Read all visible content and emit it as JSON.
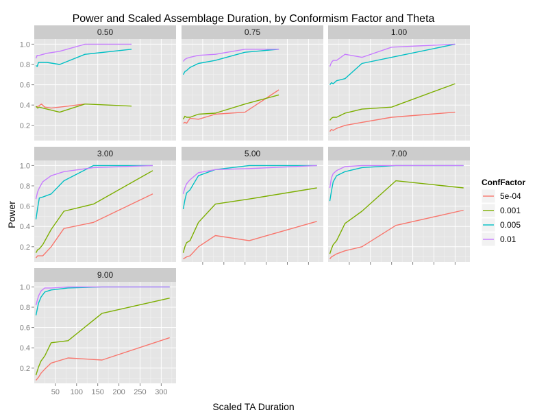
{
  "chart_data": {
    "type": "line",
    "title": "Power and Scaled Assemblage Duration, by Conformism Factor and Theta",
    "xlabel": "Scaled TA Duration",
    "ylabel": "Power",
    "xlim": [
      0,
      335
    ],
    "ylim": [
      0.05,
      1.05
    ],
    "x_ticks": [
      50,
      100,
      150,
      200,
      250,
      300
    ],
    "y_ticks": [
      0.2,
      0.4,
      0.6,
      0.8,
      1.0
    ],
    "y_tick_labels": [
      "0.2",
      "0.4",
      "0.6",
      "0.8",
      "1.0"
    ],
    "x_tick_labels": [
      "50",
      "100",
      "150",
      "200",
      "250",
      "300"
    ],
    "grid": true,
    "facet_layout": {
      "rows": 3,
      "cols": 3
    },
    "legend": {
      "title": "ConfFactor",
      "position": "right",
      "entries": [
        {
          "label": "5e-04",
          "color": "#f8766d"
        },
        {
          "label": "0.001",
          "color": "#7cae00"
        },
        {
          "label": "0.005",
          "color": "#00bfc4"
        },
        {
          "label": "0.01",
          "color": "#c77cff"
        }
      ]
    },
    "facets": [
      {
        "label": "0.50",
        "series": [
          {
            "name": "5e-04",
            "x": [
              4,
              10,
              17,
              25,
              40,
              60,
              100,
              120
            ],
            "y": [
              0.38,
              0.39,
              0.41,
              0.38,
              0.37,
              0.38,
              0.4,
              0.41
            ]
          },
          {
            "name": "0.001",
            "x": [
              4,
              8,
              12,
              20,
              60,
              120,
              230
            ],
            "y": [
              0.39,
              0.37,
              0.38,
              0.37,
              0.33,
              0.41,
              0.39
            ]
          },
          {
            "name": "0.005",
            "x": [
              4,
              7,
              10,
              15,
              30,
              60,
              120,
              230
            ],
            "y": [
              0.79,
              0.78,
              0.82,
              0.82,
              0.82,
              0.8,
              0.9,
              0.95
            ]
          },
          {
            "name": "0.01",
            "x": [
              4,
              7,
              12,
              30,
              60,
              120,
              230
            ],
            "y": [
              0.86,
              0.89,
              0.89,
              0.91,
              0.93,
              1.0,
              1.0
            ]
          }
        ]
      },
      {
        "label": "0.75",
        "series": [
          {
            "name": "5e-04",
            "x": [
              4,
              8,
              12,
              20,
              40,
              80,
              150,
              230
            ],
            "y": [
              0.22,
              0.23,
              0.22,
              0.27,
              0.26,
              0.31,
              0.33,
              0.55
            ]
          },
          {
            "name": "0.001",
            "x": [
              4,
              8,
              12,
              20,
              40,
              80,
              150,
              230
            ],
            "y": [
              0.26,
              0.29,
              0.28,
              0.28,
              0.31,
              0.32,
              0.41,
              0.5
            ]
          },
          {
            "name": "0.005",
            "x": [
              4,
              8,
              12,
              20,
              40,
              80,
              150,
              230
            ],
            "y": [
              0.7,
              0.73,
              0.74,
              0.77,
              0.81,
              0.84,
              0.92,
              0.95
            ]
          },
          {
            "name": "0.01",
            "x": [
              4,
              8,
              12,
              20,
              40,
              80,
              150,
              230
            ],
            "y": [
              0.83,
              0.85,
              0.86,
              0.87,
              0.89,
              0.9,
              0.95,
              0.95
            ]
          }
        ]
      },
      {
        "label": "1.00",
        "series": [
          {
            "name": "5e-04",
            "x": [
              4,
              8,
              12,
              20,
              40,
              80,
              150,
              300
            ],
            "y": [
              0.14,
              0.16,
              0.15,
              0.17,
              0.2,
              0.23,
              0.28,
              0.33
            ]
          },
          {
            "name": "0.001",
            "x": [
              4,
              8,
              12,
              20,
              40,
              80,
              150,
              300
            ],
            "y": [
              0.25,
              0.27,
              0.28,
              0.28,
              0.32,
              0.36,
              0.38,
              0.61
            ]
          },
          {
            "name": "0.005",
            "x": [
              4,
              8,
              12,
              20,
              40,
              80,
              150,
              300
            ],
            "y": [
              0.6,
              0.62,
              0.61,
              0.64,
              0.66,
              0.81,
              0.87,
              1.0
            ]
          },
          {
            "name": "0.01",
            "x": [
              4,
              8,
              12,
              20,
              40,
              80,
              150,
              300
            ],
            "y": [
              0.78,
              0.82,
              0.84,
              0.84,
              0.9,
              0.87,
              0.97,
              1.0
            ]
          }
        ]
      },
      {
        "label": "3.00",
        "series": [
          {
            "name": "5e-04",
            "x": [
              4,
              8,
              12,
              20,
              40,
              70,
              140,
              280
            ],
            "y": [
              0.09,
              0.11,
              0.11,
              0.11,
              0.2,
              0.38,
              0.44,
              0.72
            ]
          },
          {
            "name": "0.001",
            "x": [
              4,
              8,
              12,
              20,
              40,
              70,
              140,
              280
            ],
            "y": [
              0.14,
              0.17,
              0.18,
              0.22,
              0.37,
              0.55,
              0.62,
              0.95
            ]
          },
          {
            "name": "0.005",
            "x": [
              4,
              8,
              12,
              20,
              40,
              70,
              140,
              280
            ],
            "y": [
              0.47,
              0.58,
              0.68,
              0.69,
              0.72,
              0.85,
              1.0,
              1.0
            ]
          },
          {
            "name": "0.01",
            "x": [
              4,
              8,
              12,
              20,
              40,
              70,
              140,
              280
            ],
            "y": [
              0.67,
              0.74,
              0.78,
              0.84,
              0.9,
              0.94,
              0.98,
              1.0
            ]
          }
        ]
      },
      {
        "label": "5.00",
        "series": [
          {
            "name": "5e-04",
            "x": [
              4,
              8,
              12,
              20,
              40,
              80,
              160,
              320
            ],
            "y": [
              0.08,
              0.09,
              0.1,
              0.11,
              0.2,
              0.31,
              0.26,
              0.45
            ]
          },
          {
            "name": "0.001",
            "x": [
              4,
              8,
              12,
              20,
              40,
              80,
              160,
              320
            ],
            "y": [
              0.14,
              0.2,
              0.24,
              0.26,
              0.44,
              0.62,
              0.67,
              0.78
            ]
          },
          {
            "name": "0.005",
            "x": [
              4,
              8,
              12,
              20,
              40,
              80,
              160,
              320
            ],
            "y": [
              0.57,
              0.66,
              0.73,
              0.76,
              0.9,
              0.96,
              1.0,
              1.0
            ]
          },
          {
            "name": "0.01",
            "x": [
              4,
              8,
              12,
              20,
              40,
              80,
              160,
              320
            ],
            "y": [
              0.72,
              0.78,
              0.82,
              0.86,
              0.93,
              0.96,
              0.97,
              1.0
            ]
          }
        ]
      },
      {
        "label": "7.00",
        "series": [
          {
            "name": "5e-04",
            "x": [
              4,
              8,
              12,
              20,
              40,
              80,
              160,
              320
            ],
            "y": [
              0.08,
              0.1,
              0.11,
              0.13,
              0.16,
              0.2,
              0.41,
              0.56
            ]
          },
          {
            "name": "0.001",
            "x": [
              4,
              8,
              12,
              20,
              40,
              80,
              160,
              320
            ],
            "y": [
              0.13,
              0.18,
              0.22,
              0.26,
              0.43,
              0.55,
              0.85,
              0.78
            ]
          },
          {
            "name": "0.005",
            "x": [
              4,
              8,
              12,
              20,
              40,
              80,
              160,
              320
            ],
            "y": [
              0.65,
              0.75,
              0.84,
              0.9,
              0.94,
              0.98,
              1.0,
              1.0
            ]
          },
          {
            "name": "0.01",
            "x": [
              4,
              8,
              12,
              20,
              40,
              80,
              160,
              320
            ],
            "y": [
              0.78,
              0.88,
              0.92,
              0.95,
              0.99,
              1.0,
              1.0,
              1.0
            ]
          }
        ]
      },
      {
        "label": "9.00",
        "series": [
          {
            "name": "5e-04",
            "x": [
              4,
              10,
              16,
              25,
              40,
              80,
              160,
              320
            ],
            "y": [
              0.08,
              0.11,
              0.15,
              0.19,
              0.25,
              0.3,
              0.28,
              0.5
            ]
          },
          {
            "name": "0.001",
            "x": [
              4,
              10,
              16,
              25,
              40,
              80,
              160,
              320
            ],
            "y": [
              0.13,
              0.21,
              0.27,
              0.32,
              0.45,
              0.47,
              0.74,
              0.89
            ]
          },
          {
            "name": "0.005",
            "x": [
              4,
              10,
              16,
              25,
              40,
              80,
              160,
              320
            ],
            "y": [
              0.72,
              0.84,
              0.9,
              0.95,
              0.97,
              0.99,
              1.0,
              1.0
            ]
          },
          {
            "name": "0.01",
            "x": [
              4,
              10,
              16,
              25,
              40,
              80,
              160,
              320
            ],
            "y": [
              0.82,
              0.91,
              0.96,
              0.99,
              0.99,
              1.0,
              1.0,
              1.0
            ]
          }
        ]
      }
    ]
  }
}
